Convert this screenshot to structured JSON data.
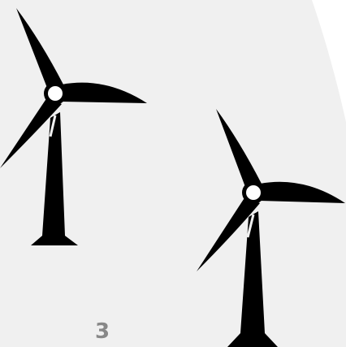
{
  "label": "3"
}
